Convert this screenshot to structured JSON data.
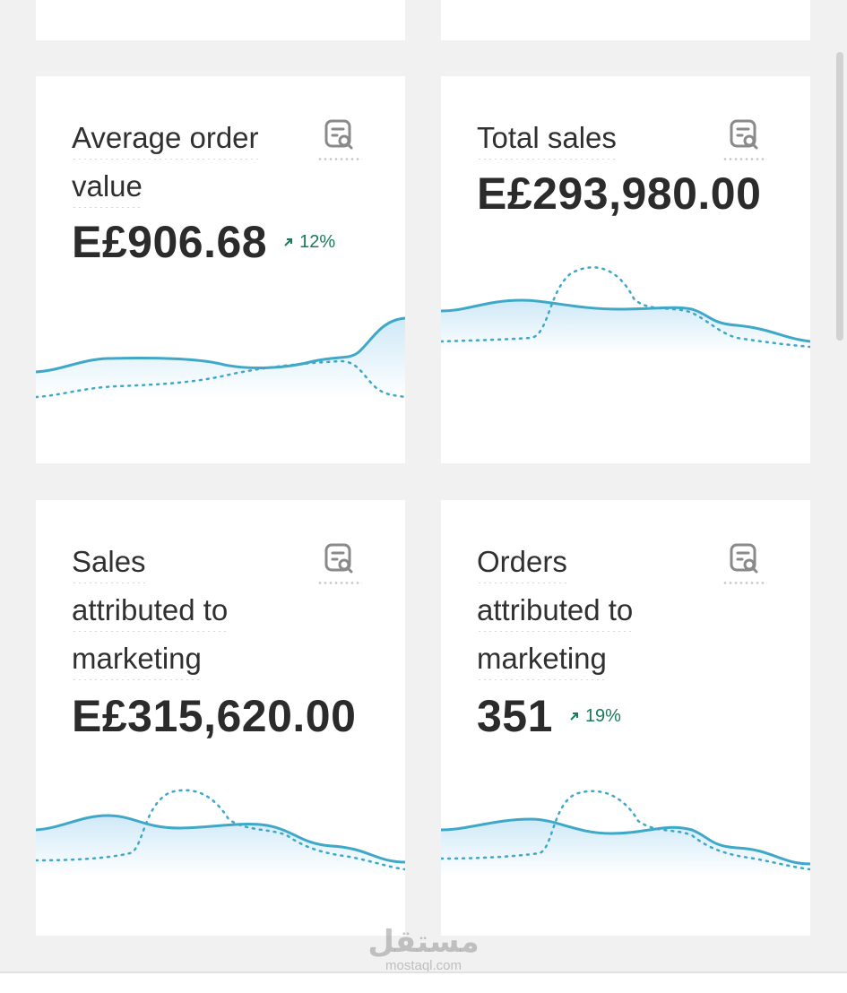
{
  "cards": [
    {
      "title_lines": [
        "Average order",
        "value"
      ],
      "value": "E£906.68",
      "trend": "12%",
      "icon": "report-search-icon"
    },
    {
      "title_lines": [
        "Total sales"
      ],
      "value": "E£293,980.00",
      "trend": null,
      "icon": "report-search-icon"
    },
    {
      "title_lines": [
        "Sales",
        "attributed to",
        "marketing"
      ],
      "value": "E£315,620.00",
      "trend": null,
      "icon": "report-search-icon"
    },
    {
      "title_lines": [
        "Orders",
        "attributed to",
        "marketing"
      ],
      "value": "351",
      "trend": "19%",
      "icon": "report-search-icon"
    }
  ],
  "colors": {
    "sparkline": "#3fa8c9",
    "sparkline_fill": "#dff0fa",
    "trend_up": "#1b7a5a"
  },
  "watermark": {
    "logo": "مستقل",
    "url": "mostaql.com"
  }
}
